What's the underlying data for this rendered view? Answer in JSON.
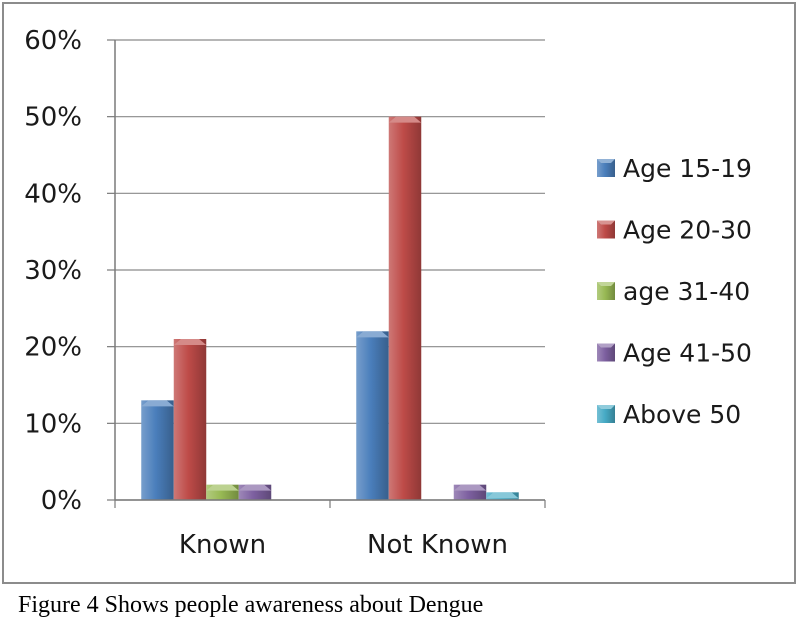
{
  "caption": "Figure 4 Shows people awareness about Dengue",
  "chart_data": {
    "type": "bar",
    "categories": [
      "Known",
      "Not Known"
    ],
    "series": [
      {
        "name": "Age 15-19",
        "values": [
          13,
          22
        ],
        "color": "#4a7ebb"
      },
      {
        "name": "Age 20-30",
        "values": [
          21,
          50
        ],
        "color": "#be4b48"
      },
      {
        "name": "age 31-40",
        "values": [
          2,
          0
        ],
        "color": "#98b954"
      },
      {
        "name": "Age 41-50",
        "values": [
          2,
          2
        ],
        "color": "#7d60a0"
      },
      {
        "name": "Above 50",
        "values": [
          0,
          1
        ],
        "color": "#46aac5"
      }
    ],
    "yticks": [
      "0%",
      "10%",
      "20%",
      "30%",
      "40%",
      "50%",
      "60%"
    ],
    "ylim": [
      0,
      60
    ],
    "unit": "%",
    "grid": true,
    "legend_position": "right"
  }
}
